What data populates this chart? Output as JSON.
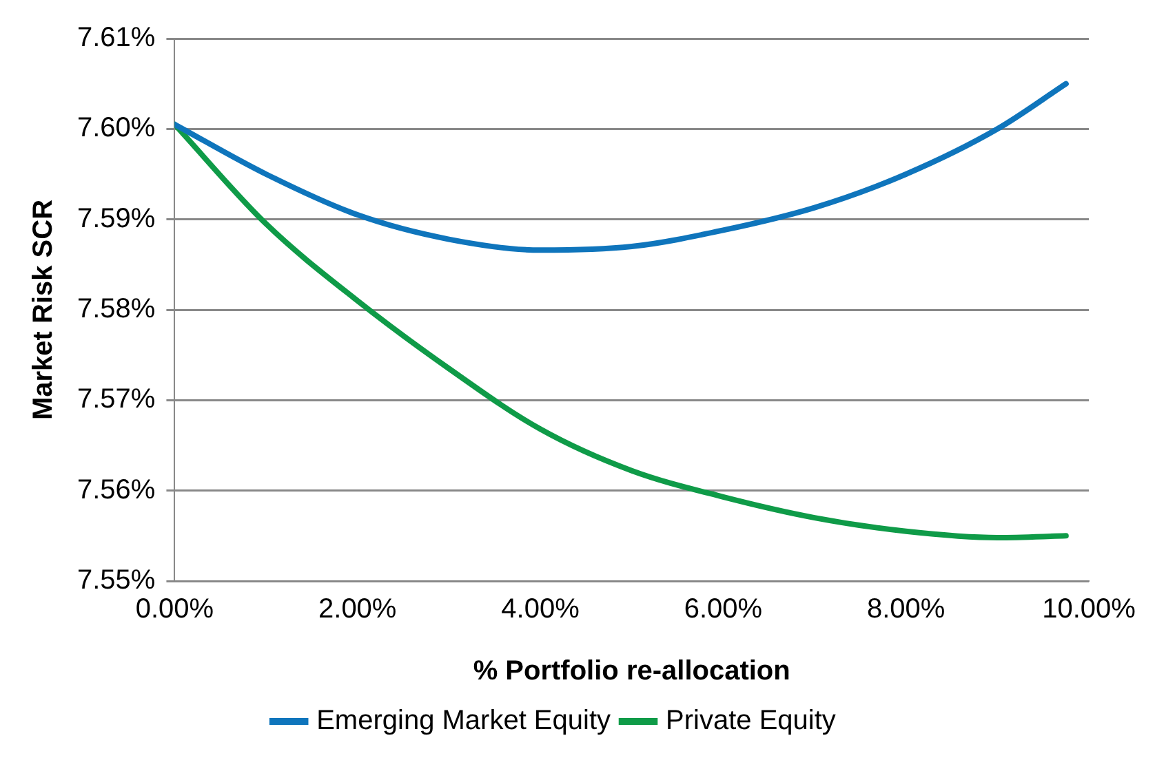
{
  "chart_data": {
    "type": "line",
    "xlabel": "% Portfolio re-allocation",
    "ylabel": "Market Risk SCR",
    "xlim": [
      0,
      10
    ],
    "ylim": [
      7.55,
      7.61
    ],
    "xticks": [
      {
        "value": 0,
        "label": "0.00%"
      },
      {
        "value": 2,
        "label": "2.00%"
      },
      {
        "value": 4,
        "label": "4.00%"
      },
      {
        "value": 6,
        "label": "6.00%"
      },
      {
        "value": 8,
        "label": "8.00%"
      },
      {
        "value": 10,
        "label": "10.00%"
      }
    ],
    "yticks": [
      {
        "value": 7.55,
        "label": "7.55%"
      },
      {
        "value": 7.56,
        "label": "7.56%"
      },
      {
        "value": 7.57,
        "label": "7.57%"
      },
      {
        "value": 7.58,
        "label": "7.58%"
      },
      {
        "value": 7.59,
        "label": "7.59%"
      },
      {
        "value": 7.6,
        "label": "7.60%"
      },
      {
        "value": 7.61,
        "label": "7.61%"
      }
    ],
    "x": [
      0,
      1,
      2,
      3,
      4,
      5,
      6,
      7,
      8,
      9,
      9.75
    ],
    "series": [
      {
        "name": "Emerging Market Equity",
        "color": "#0f75bc",
        "values": [
          7.6005,
          7.595,
          7.5905,
          7.5878,
          7.5866,
          7.587,
          7.5888,
          7.5913,
          7.595,
          7.6,
          7.605
        ]
      },
      {
        "name": "Private Equity",
        "color": "#0f9b48",
        "values": [
          7.6005,
          7.5895,
          7.581,
          7.5735,
          7.5668,
          7.5622,
          7.5593,
          7.557,
          7.5555,
          7.5548,
          7.555
        ]
      }
    ],
    "grid": "y",
    "legend": "bottom",
    "marker": "none",
    "line_style": "solid"
  }
}
